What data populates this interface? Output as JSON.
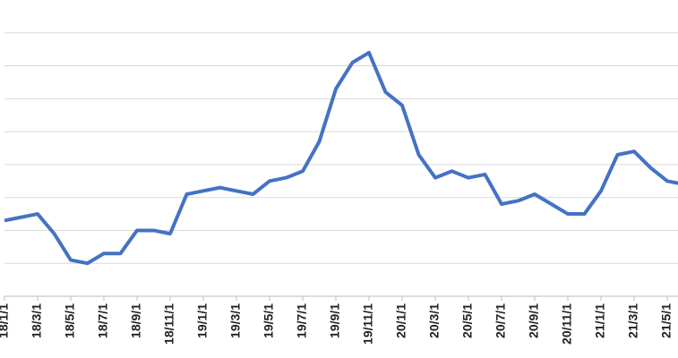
{
  "chart_data": {
    "type": "line",
    "categories": [
      "18/1/1",
      null,
      "18/3/1",
      null,
      "18/5/1",
      null,
      "18/7/1",
      null,
      "18/9/1",
      null,
      "18/11/1",
      null,
      "19/1/1",
      null,
      "19/3/1",
      null,
      "19/5/1",
      null,
      "19/7/1",
      null,
      "19/9/1",
      null,
      "19/11/1",
      null,
      "20/1/1",
      null,
      "20/3/1",
      null,
      "20/5/1",
      null,
      "20/7/1",
      null,
      "20/9/1",
      null,
      "20/11/1",
      null,
      "21/1/1",
      null,
      "21/3/1",
      null,
      "21/5/1",
      null
    ],
    "series": [
      {
        "color": "#4472c4",
        "values": [
          2.3,
          2.4,
          2.5,
          1.9,
          1.1,
          1.0,
          1.3,
          1.3,
          2.0,
          2.0,
          1.9,
          3.1,
          3.2,
          3.3,
          3.2,
          3.1,
          3.5,
          3.6,
          3.8,
          4.7,
          6.3,
          7.1,
          7.4,
          6.2,
          5.8,
          4.3,
          3.6,
          3.8,
          3.6,
          3.7,
          2.8,
          2.9,
          3.1,
          2.8,
          2.5,
          2.5,
          3.2,
          4.3,
          4.4,
          3.9,
          3.5,
          3.4
        ]
      }
    ],
    "ylim": [
      0,
      9
    ],
    "yticks": [
      0,
      1,
      2,
      3,
      4,
      5,
      6,
      7,
      8
    ],
    "grid": true
  }
}
